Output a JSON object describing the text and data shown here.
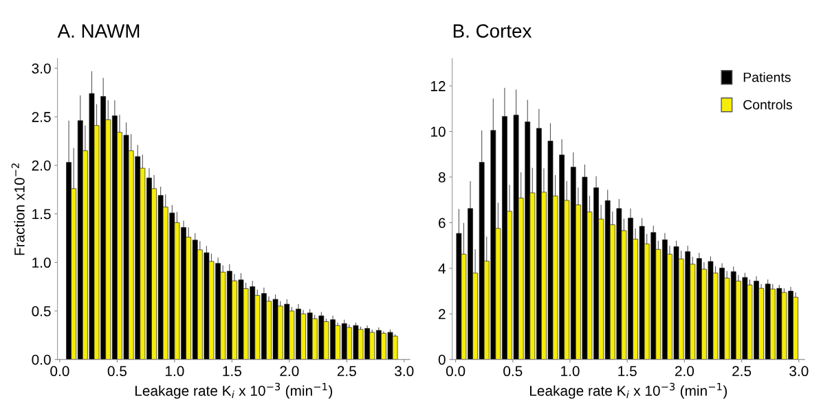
{
  "chart_data": [
    {
      "type": "bar",
      "title": "A. NAWM",
      "ylabel": "Fraction x10$^{−2}$",
      "xlabel": "Leakage rate K$_{i}$ x 10$^{−3}$ (min$^{−1}$)",
      "x": [
        0.1,
        0.2,
        0.3,
        0.4,
        0.5,
        0.6,
        0.7,
        0.8,
        0.9,
        1.0,
        1.1,
        1.2,
        1.3,
        1.4,
        1.5,
        1.6,
        1.7,
        1.8,
        1.9,
        2.0,
        2.1,
        2.2,
        2.3,
        2.4,
        2.5,
        2.6,
        2.7,
        2.8,
        2.9
      ],
      "series": [
        {
          "color": "#000000",
          "values": [
            2.03,
            2.46,
            2.74,
            2.71,
            2.51,
            2.31,
            2.09,
            1.87,
            1.69,
            1.51,
            1.36,
            1.23,
            1.1,
            0.99,
            0.91,
            0.82,
            0.75,
            0.68,
            0.62,
            0.57,
            0.52,
            0.48,
            0.45,
            0.41,
            0.37,
            0.35,
            0.32,
            0.3,
            0.28
          ],
          "errors": [
            0.43,
            0.26,
            0.23,
            0.19,
            0.16,
            0.13,
            0.12,
            0.1,
            0.09,
            0.08,
            0.07,
            0.07,
            0.07,
            0.06,
            0.07,
            0.07,
            0.06,
            0.06,
            0.05,
            0.05,
            0.05,
            0.04,
            0.04,
            0.04,
            0.04,
            0.03,
            0.03,
            0.03,
            0.03
          ]
        },
        {
          "color": "#f5ec0a",
          "values": [
            1.76,
            2.15,
            2.41,
            2.47,
            2.34,
            2.15,
            1.97,
            1.76,
            1.57,
            1.41,
            1.26,
            1.13,
            1.01,
            0.9,
            0.81,
            0.73,
            0.66,
            0.6,
            0.55,
            0.5,
            0.47,
            0.42,
            0.39,
            0.35,
            0.33,
            0.31,
            0.28,
            0.27,
            0.24
          ],
          "errors": [
            0.42,
            0.26,
            0.22,
            0.2,
            0.18,
            0.17,
            0.14,
            0.14,
            0.13,
            0.11,
            0.1,
            0.09,
            0.08,
            0.07,
            0.07,
            0.06,
            0.06,
            0.05,
            0.05,
            0.04,
            0.04,
            0.04,
            0.03,
            0.03,
            0.03,
            0.03,
            0.03,
            0.02,
            0.02
          ]
        }
      ],
      "xlim": [
        -0.02,
        3.05
      ],
      "xticks": [
        {
          "value": 0,
          "label": "0.0"
        },
        {
          "value": 0.5,
          "label": "0.5"
        },
        {
          "value": 1,
          "label": "1.0"
        },
        {
          "value": 1.5,
          "label": "1.5"
        },
        {
          "value": 2,
          "label": "2.0"
        },
        {
          "value": 2.5,
          "label": "2.5"
        },
        {
          "value": 3,
          "label": "3.0"
        }
      ],
      "ylim": [
        0,
        3.1
      ],
      "yticks": [
        {
          "value": 0,
          "label": "0.0"
        },
        {
          "value": 0.5,
          "label": "0.5"
        },
        {
          "value": 1,
          "label": "1.0"
        },
        {
          "value": 1.5,
          "label": "1.5"
        },
        {
          "value": 2,
          "label": "2.0"
        },
        {
          "value": 2.5,
          "label": "2.5"
        },
        {
          "value": 3,
          "label": "3.0"
        }
      ],
      "grid": false,
      "legend": false
    },
    {
      "type": "bar",
      "title": "B. Cortex",
      "xlabel": "Leakage rate K$_{i}$ x 10$^{−3}$ (min$^{−1}$)",
      "x": [
        0.05,
        0.15,
        0.25,
        0.35,
        0.45,
        0.55,
        0.65,
        0.75,
        0.85,
        0.95,
        1.05,
        1.15,
        1.25,
        1.35,
        1.45,
        1.55,
        1.65,
        1.75,
        1.85,
        1.95,
        2.05,
        2.15,
        2.25,
        2.35,
        2.45,
        2.55,
        2.65,
        2.75,
        2.85,
        2.95
      ],
      "series": [
        {
          "name": "Patients",
          "color": "#000000",
          "values": [
            5.53,
            6.62,
            8.65,
            10.05,
            10.66,
            10.72,
            10.42,
            10.14,
            9.58,
            8.97,
            8.44,
            8.0,
            7.53,
            6.97,
            6.62,
            6.2,
            5.84,
            5.57,
            5.25,
            4.95,
            4.73,
            4.43,
            4.3,
            4.01,
            3.85,
            3.6,
            3.44,
            3.31,
            3.12,
            3.0
          ],
          "errors": [
            1.07,
            1.2,
            1.4,
            1.4,
            1.25,
            1.12,
            0.97,
            0.85,
            0.78,
            0.69,
            0.64,
            0.55,
            0.51,
            0.47,
            0.42,
            0.42,
            0.36,
            0.3,
            0.3,
            0.26,
            0.26,
            0.25,
            0.22,
            0.21,
            0.23,
            0.2,
            0.21,
            0.2,
            0.15,
            0.18
          ]
        },
        {
          "name": "Controls",
          "color": "#f5ec0a",
          "values": [
            4.62,
            3.79,
            4.32,
            5.75,
            6.5,
            7.08,
            7.31,
            7.34,
            7.17,
            6.98,
            6.78,
            6.47,
            6.16,
            5.91,
            5.65,
            5.28,
            5.07,
            4.83,
            4.62,
            4.41,
            4.18,
            3.96,
            3.79,
            3.57,
            3.44,
            3.27,
            3.12,
            3.09,
            2.94,
            2.73
          ],
          "errors": [
            1.37,
            1.04,
            1.07,
            1.13,
            1.16,
            1.13,
            1.1,
            1.04,
            0.92,
            0.85,
            0.76,
            0.71,
            0.62,
            0.58,
            0.53,
            0.47,
            0.44,
            0.38,
            0.37,
            0.36,
            0.32,
            0.31,
            0.3,
            0.31,
            0.26,
            0.24,
            0.19,
            0.22,
            0.18,
            0.21
          ]
        }
      ],
      "xlim": [
        -0.03,
        3.05
      ],
      "xticks": [
        {
          "value": 0,
          "label": "0.0"
        },
        {
          "value": 0.5,
          "label": "0.5"
        },
        {
          "value": 1,
          "label": "1.0"
        },
        {
          "value": 1.5,
          "label": "1.5"
        },
        {
          "value": 2,
          "label": "2.0"
        },
        {
          "value": 2.5,
          "label": "2.5"
        },
        {
          "value": 3,
          "label": "3.0"
        }
      ],
      "ylim": [
        0,
        13.2
      ],
      "yticks": [
        0,
        2,
        4,
        6,
        8,
        10,
        12
      ],
      "grid": false,
      "legend": "top right"
    }
  ]
}
